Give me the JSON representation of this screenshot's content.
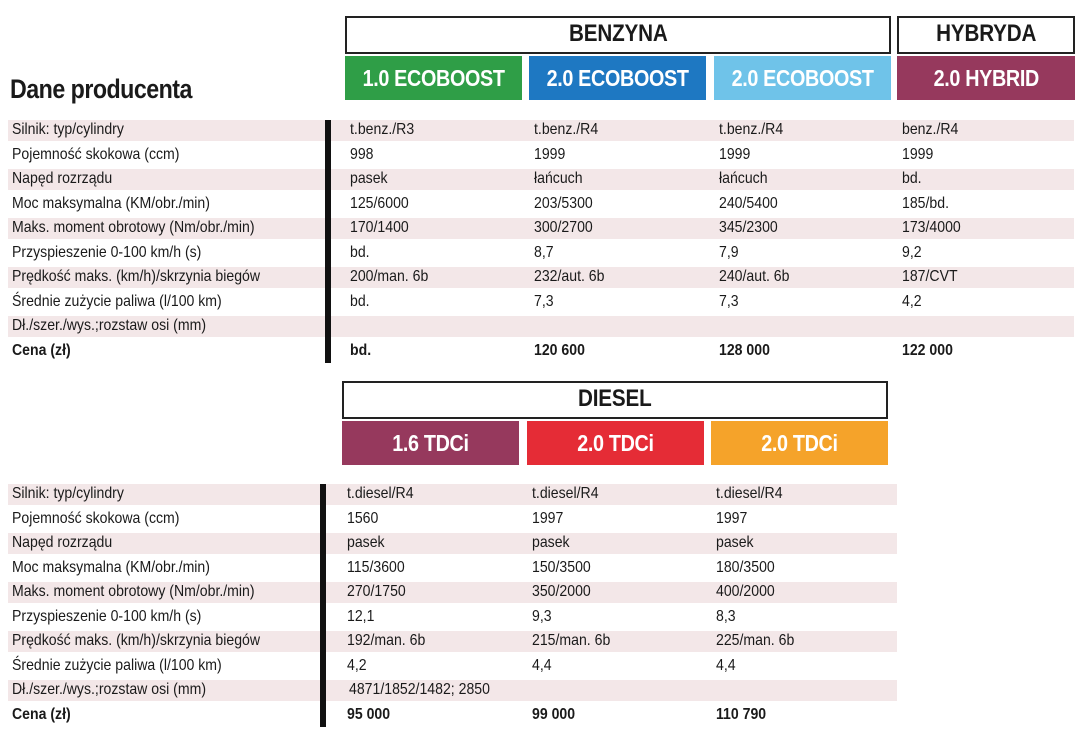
{
  "title": "Dane producenta",
  "colors": {
    "green": "#2f9e47",
    "blue": "#1e78c2",
    "lightblue": "#6fc3e9",
    "maroon": "#96395d",
    "red": "#e52c36",
    "orange": "#f5a32a",
    "band": "#f3e7e8"
  },
  "row_labels": [
    "Silnik: typ/cylindry",
    "Pojemność skokowa (ccm)",
    "Napęd rozrządu",
    "Moc maksymalna (KM/obr./min)",
    "Maks. moment obrotowy (Nm/obr./min)",
    "Przyspieszenie 0-100 km/h (s)",
    "Prędkość maks. (km/h)/skrzynia biegów",
    "Średnie zużycie paliwa (l/100 km)",
    "Dł./szer./wys.;rozstaw osi (mm)",
    "Cena (zł)"
  ],
  "top": {
    "groups": [
      {
        "label": "BENZYNA"
      },
      {
        "label": "HYBRYDA"
      }
    ],
    "engines": [
      {
        "label": "1.0 ECOBOOST",
        "color": "green",
        "values": [
          "t.benz./R3",
          "998",
          "pasek",
          "125/6000",
          "170/1400",
          "bd.",
          "200/man. 6b",
          "bd.",
          "",
          "bd."
        ]
      },
      {
        "label": "2.0 ECOBOOST",
        "color": "blue",
        "values": [
          "t.benz./R4",
          "1999",
          "łańcuch",
          "203/5300",
          "300/2700",
          "8,7",
          "232/aut. 6b",
          "7,3",
          "",
          "120 600"
        ]
      },
      {
        "label": "2.0 ECOBOOST",
        "color": "lightblue",
        "values": [
          "t.benz./R4",
          "1999",
          "łańcuch",
          "240/5400",
          "345/2300",
          "7,9",
          "240/aut. 6b",
          "7,3",
          "",
          "128 000"
        ]
      },
      {
        "label": "2.0 HYBRID",
        "color": "maroon",
        "values": [
          "benz./R4",
          "1999",
          "bd.",
          "185/bd.",
          "173/4000",
          "9,2",
          "187/CVT",
          "4,2",
          "",
          "122 000"
        ]
      }
    ]
  },
  "bottom": {
    "groups": [
      {
        "label": "DIESEL"
      }
    ],
    "dimensions": "4871/1852/1482; 2850",
    "engines": [
      {
        "label": "1.6 TDCi",
        "color": "maroon",
        "values": [
          "t.diesel/R4",
          "1560",
          "pasek",
          "115/3600",
          "270/1750",
          "12,1",
          "192/man. 6b",
          "4,2",
          "",
          "95 000"
        ]
      },
      {
        "label": "2.0 TDCi",
        "color": "red",
        "values": [
          "t.diesel/R4",
          "1997",
          "pasek",
          "150/3500",
          "350/2000",
          "9,3",
          "215/man. 6b",
          "4,4",
          "",
          "99 000"
        ]
      },
      {
        "label": "2.0 TDCi",
        "color": "orange",
        "values": [
          "t.diesel/R4",
          "1997",
          "pasek",
          "180/3500",
          "400/2000",
          "8,3",
          "225/man. 6b",
          "4,4",
          "",
          "110 790"
        ]
      }
    ]
  }
}
